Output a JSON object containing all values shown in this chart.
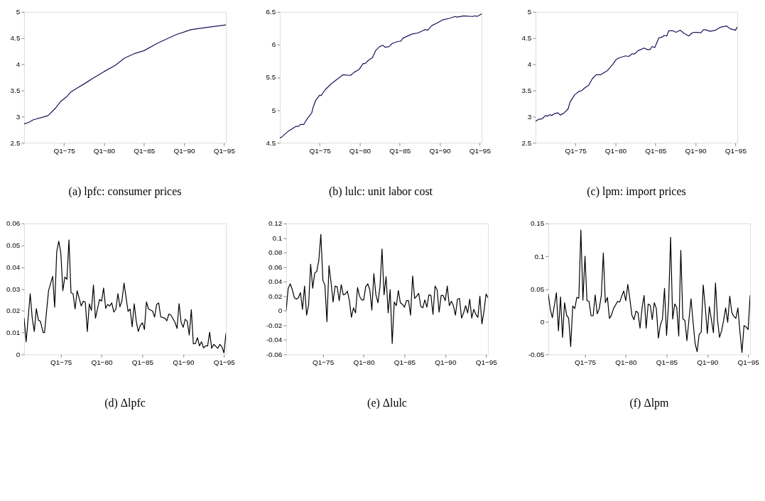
{
  "chart_data": [
    {
      "type": "line",
      "title": "(a) lpfc: consumer prices",
      "color": "#14145a",
      "grid": false,
      "xlim": [
        "1970-01",
        "1995-04"
      ],
      "ylim": [
        2.5,
        5
      ],
      "xticks": [
        {
          "value": "1975-01",
          "label": "Q1−75"
        },
        {
          "value": "1980-01",
          "label": "Q1−80"
        },
        {
          "value": "1985-01",
          "label": "Q1−85"
        },
        {
          "value": "1990-01",
          "label": "Q1−90"
        },
        {
          "value": "1995-01",
          "label": "Q1−95"
        }
      ],
      "yticks": [
        2.5,
        3,
        3.5,
        4,
        4.5,
        5
      ],
      "x": [
        "1970-01",
        "1970-08",
        "1971-03",
        "1972-05",
        "1973-01",
        "1973-12",
        "1974-08",
        "1975-05",
        "1975-11",
        "1976-08",
        "1977-09",
        "1978-08",
        "1980-01",
        "1981-06",
        "1982-08",
        "1983-12",
        "1985-01",
        "1986-09",
        "1988-12",
        "1990-11",
        "1992-09",
        "1995-04"
      ],
      "values": [
        2.86,
        2.89,
        2.94,
        2.99,
        3.02,
        3.16,
        3.29,
        3.38,
        3.47,
        3.54,
        3.64,
        3.73,
        3.86,
        3.98,
        4.12,
        4.21,
        4.26,
        4.4,
        4.56,
        4.66,
        4.7,
        4.75
      ]
    },
    {
      "type": "line",
      "title": "(b) lulc: unit labor cost",
      "color": "#14145a",
      "grid": false,
      "xlim": [
        "1970-01",
        "1995-04"
      ],
      "ylim": [
        4.5,
        6.5
      ],
      "xticks": [
        {
          "value": "1975-01",
          "label": "Q1−75"
        },
        {
          "value": "1980-01",
          "label": "Q1−80"
        },
        {
          "value": "1985-01",
          "label": "Q1−85"
        },
        {
          "value": "1990-01",
          "label": "Q1−90"
        },
        {
          "value": "1995-01",
          "label": "Q1−95"
        }
      ],
      "yticks": [
        4.5,
        5,
        5.5,
        6,
        6.5
      ],
      "x": [
        "1970-01",
        "1970-03",
        "1971-02",
        "1972-01",
        "1972-05",
        "1972-08",
        "1973-01",
        "1973-05",
        "1974-01",
        "1974-03",
        "1974-07",
        "1975-01",
        "1975-03",
        "1975-09",
        "1976-06",
        "1977-03",
        "1977-12",
        "1978-11",
        "1979-05",
        "1979-12",
        "1980-06",
        "1980-09",
        "1981-02",
        "1981-08",
        "1982-01",
        "1982-07",
        "1982-12",
        "1983-03",
        "1983-09",
        "1984-02",
        "1984-11",
        "1985-02",
        "1985-06",
        "1986-07",
        "1987-05",
        "1988-03",
        "1988-07",
        "1989-01",
        "1989-09",
        "1990-06",
        "1991-03",
        "1991-12",
        "1992-03",
        "1993-01",
        "1994-02",
        "1994-06",
        "1994-09",
        "1995-04"
      ],
      "values": [
        4.58,
        4.58,
        4.68,
        4.75,
        4.75,
        4.78,
        4.78,
        4.85,
        4.96,
        5.04,
        5.15,
        5.23,
        5.22,
        5.31,
        5.4,
        5.47,
        5.54,
        5.53,
        5.58,
        5.62,
        5.71,
        5.71,
        5.76,
        5.8,
        5.91,
        5.97,
        5.99,
        5.96,
        5.97,
        6.02,
        6.05,
        6.05,
        6.1,
        6.16,
        6.18,
        6.23,
        6.22,
        6.29,
        6.33,
        6.38,
        6.4,
        6.43,
        6.42,
        6.44,
        6.43,
        6.44,
        6.43,
        6.47
      ]
    },
    {
      "type": "line",
      "title": "(c) lpm: import prices",
      "color": "#14145a",
      "grid": false,
      "xlim": [
        "1970-01",
        "1995-04"
      ],
      "ylim": [
        2.5,
        5
      ],
      "xticks": [
        {
          "value": "1975-01",
          "label": "Q1−75"
        },
        {
          "value": "1980-01",
          "label": "Q1−80"
        },
        {
          "value": "1985-01",
          "label": "Q1−85"
        },
        {
          "value": "1990-01",
          "label": "Q1−90"
        },
        {
          "value": "1995-01",
          "label": "Q1−95"
        }
      ],
      "yticks": [
        2.5,
        3,
        3.5,
        4,
        4.5,
        5
      ],
      "x": [
        "1970-01",
        "1970-06",
        "1970-11",
        "1971-04",
        "1971-07",
        "1971-11",
        "1972-01",
        "1972-06",
        "1972-11",
        "1973-02",
        "1973-08",
        "1974-02",
        "1974-05",
        "1974-12",
        "1975-06",
        "1975-11",
        "1976-02",
        "1976-09",
        "1977-02",
        "1977-08",
        "1978-03",
        "1979-01",
        "1979-09",
        "1980-02",
        "1980-06",
        "1981-04",
        "1981-09",
        "1982-02",
        "1982-06",
        "1982-11",
        "1983-08",
        "1984-01",
        "1984-05",
        "1984-08",
        "1984-12",
        "1985-02",
        "1985-06",
        "1985-11",
        "1986-02",
        "1986-06",
        "1986-09",
        "1987-03",
        "1987-08",
        "1988-02",
        "1988-08",
        "1989-03",
        "1989-08",
        "1989-12",
        "1990-05",
        "1990-09",
        "1991-01",
        "1991-04",
        "1991-11",
        "1992-07",
        "1993-03",
        "1993-08",
        "1993-12",
        "1994-05",
        "1995-01",
        "1995-04"
      ],
      "values": [
        2.91,
        2.95,
        2.96,
        3.02,
        3.01,
        3.04,
        3.02,
        3.06,
        3.07,
        3.03,
        3.07,
        3.15,
        3.28,
        3.42,
        3.48,
        3.5,
        3.54,
        3.6,
        3.72,
        3.8,
        3.8,
        3.88,
        4.0,
        4.09,
        4.12,
        4.16,
        4.15,
        4.2,
        4.2,
        4.26,
        4.31,
        4.28,
        4.28,
        4.34,
        4.32,
        4.38,
        4.5,
        4.52,
        4.55,
        4.54,
        4.64,
        4.64,
        4.61,
        4.65,
        4.59,
        4.54,
        4.6,
        4.61,
        4.61,
        4.6,
        4.66,
        4.66,
        4.63,
        4.65,
        4.71,
        4.72,
        4.73,
        4.68,
        4.65,
        4.71
      ]
    },
    {
      "type": "line",
      "title": "(d) Δlpfc",
      "color": "#000000",
      "grid": false,
      "xlim": [
        "1970-07",
        "1995-04"
      ],
      "ylim": [
        0,
        0.06
      ],
      "xticks": [
        {
          "value": "1975-01",
          "label": "Q1−75"
        },
        {
          "value": "1980-01",
          "label": "Q1−80"
        },
        {
          "value": "1985-01",
          "label": "Q1−85"
        },
        {
          "value": "1990-01",
          "label": "Q1−90"
        },
        {
          "value": "1995-01",
          "label": "Q1−95"
        }
      ],
      "yticks": [
        0,
        0.01,
        0.02,
        0.03,
        0.04,
        0.05,
        0.06
      ],
      "x": [
        "1970-07",
        "1970-10",
        "1971-04",
        "1971-07",
        "1971-10",
        "1972-01",
        "1972-04",
        "1972-07",
        "1972-11",
        "1973-01",
        "1973-07",
        "1974-01",
        "1974-04",
        "1974-07",
        "1974-10",
        "1975-01",
        "1975-04",
        "1975-07",
        "1975-10",
        "1976-01",
        "1976-04",
        "1976-07",
        "1976-10",
        "1977-01",
        "1977-07",
        "1977-10",
        "1978-01",
        "1978-04",
        "1978-07",
        "1978-10",
        "1979-01",
        "1979-04",
        "1979-10",
        "1980-01",
        "1980-04",
        "1980-07",
        "1980-10",
        "1981-01",
        "1981-04",
        "1981-07",
        "1981-10",
        "1982-01",
        "1982-04",
        "1982-07",
        "1982-10",
        "1983-04",
        "1983-07",
        "1983-10",
        "1984-01",
        "1984-04",
        "1984-07",
        "1984-10",
        "1985-01",
        "1985-04",
        "1985-07",
        "1985-10",
        "1986-04",
        "1986-07",
        "1986-10",
        "1987-01",
        "1987-04",
        "1987-10",
        "1988-01",
        "1988-04",
        "1988-07",
        "1989-01",
        "1989-04",
        "1989-07",
        "1989-10",
        "1990-01",
        "1990-04",
        "1990-07",
        "1990-10",
        "1991-01",
        "1991-04",
        "1991-07",
        "1991-10",
        "1992-01",
        "1992-04",
        "1992-07",
        "1992-10",
        "1993-01",
        "1993-04",
        "1993-07",
        "1993-10",
        "1994-04",
        "1994-07",
        "1994-10",
        "1995-01",
        "1995-04"
      ],
      "values": [
        0.0166,
        0.0058,
        0.0278,
        0.0166,
        0.0105,
        0.021,
        0.0157,
        0.0152,
        0.01,
        0.01,
        0.0292,
        0.0358,
        0.0216,
        0.047,
        0.0519,
        0.0466,
        0.0292,
        0.0355,
        0.0344,
        0.0525,
        0.0283,
        0.0278,
        0.0208,
        0.0292,
        0.0222,
        0.0244,
        0.0239,
        0.0105,
        0.0232,
        0.0201,
        0.0318,
        0.0166,
        0.0252,
        0.0244,
        0.0304,
        0.0211,
        0.0229,
        0.0222,
        0.0236,
        0.0194,
        0.0208,
        0.0278,
        0.0218,
        0.0246,
        0.0327,
        0.0197,
        0.0208,
        0.0127,
        0.0232,
        0.0152,
        0.0105,
        0.0133,
        0.0145,
        0.0114,
        0.0241,
        0.0208,
        0.0199,
        0.0171,
        0.0229,
        0.0236,
        0.0172,
        0.0166,
        0.0154,
        0.0185,
        0.018,
        0.0147,
        0.0119,
        0.0233,
        0.0147,
        0.0124,
        0.0161,
        0.0152,
        0.0089,
        0.0205,
        0.0049,
        0.0049,
        0.0077,
        0.0039,
        0.0058,
        0.003,
        0.0039,
        0.0039,
        0.0102,
        0.0028,
        0.0046,
        0.0028,
        0.0046,
        0.0035,
        0.0007,
        0.0096
      ]
    },
    {
      "type": "line",
      "title": "(e) Δlulc",
      "color": "#000000",
      "grid": false,
      "xlim": [
        "1970-07",
        "1995-04"
      ],
      "ylim": [
        -0.06,
        0.12
      ],
      "xticks": [
        {
          "value": "1975-01",
          "label": "Q1−75"
        },
        {
          "value": "1980-01",
          "label": "Q1−80"
        },
        {
          "value": "1985-01",
          "label": "Q1−85"
        },
        {
          "value": "1990-01",
          "label": "Q1−90"
        },
        {
          "value": "1995-01",
          "label": "Q1−95"
        }
      ],
      "yticks": [
        -0.06,
        -0.04,
        -0.02,
        0,
        0.02,
        0.04,
        0.06,
        0.08,
        0.1,
        0.12
      ],
      "x": [
        "1970-07",
        "1970-10",
        "1971-01",
        "1971-04",
        "1971-07",
        "1971-10",
        "1972-01",
        "1972-04",
        "1972-07",
        "1972-10",
        "1973-01",
        "1973-04",
        "1973-07",
        "1973-10",
        "1974-01",
        "1974-04",
        "1974-07",
        "1974-10",
        "1975-01",
        "1975-04",
        "1975-07",
        "1975-10",
        "1976-01",
        "1976-04",
        "1976-07",
        "1976-10",
        "1977-01",
        "1977-04",
        "1977-07",
        "1977-10",
        "1978-01",
        "1978-04",
        "1978-07",
        "1978-10",
        "1979-01",
        "1979-04",
        "1979-07",
        "1979-10",
        "1980-01",
        "1980-04",
        "1980-07",
        "1980-10",
        "1981-01",
        "1981-04",
        "1981-07",
        "1981-10",
        "1982-01",
        "1982-04",
        "1982-07",
        "1982-10",
        "1983-01",
        "1983-04",
        "1983-07",
        "1983-10",
        "1984-01",
        "1984-04",
        "1984-07",
        "1984-10",
        "1985-01",
        "1985-04",
        "1985-07",
        "1985-10",
        "1986-01",
        "1986-04",
        "1986-07",
        "1986-10",
        "1987-01",
        "1987-04",
        "1987-07",
        "1987-10",
        "1988-01",
        "1988-04",
        "1988-07",
        "1988-10",
        "1989-01",
        "1989-04",
        "1989-07",
        "1989-10",
        "1990-01",
        "1990-04",
        "1990-07",
        "1990-10",
        "1991-01",
        "1991-04",
        "1991-07",
        "1991-10",
        "1992-01",
        "1992-04",
        "1992-07",
        "1992-10",
        "1993-01",
        "1993-04",
        "1993-07",
        "1993-10",
        "1994-01",
        "1994-04",
        "1994-07",
        "1994-10",
        "1995-01",
        "1995-04"
      ],
      "values": [
        0.001,
        0.031,
        0.037,
        0.029,
        0.018,
        0.016,
        0.018,
        0.025,
        0.002,
        0.034,
        -0.006,
        0.008,
        0.064,
        0.031,
        0.052,
        0.054,
        0.069,
        0.105,
        0.042,
        0.035,
        -0.015,
        0.062,
        0.039,
        0.012,
        0.034,
        0.033,
        0.014,
        0.036,
        0.022,
        0.023,
        0.027,
        0.014,
        -0.009,
        0.004,
        -0.003,
        0.032,
        0.02,
        0.015,
        0.015,
        0.033,
        0.037,
        0.029,
        0.001,
        0.051,
        0.022,
        0.011,
        0.034,
        0.085,
        0.022,
        0.047,
        -0.003,
        0.029,
        -0.045,
        0.012,
        0.007,
        0.028,
        0.011,
        0.009,
        0.005,
        0.014,
        0.014,
        -0.006,
        0.048,
        0.017,
        0.02,
        0.024,
        0.006,
        0.004,
        0.015,
        0.005,
        0.022,
        0.021,
        -0.005,
        0.034,
        0.029,
        -0.002,
        0.021,
        0.021,
        0.014,
        0.034,
        0.007,
        0.013,
        0.007,
        -0.006,
        0.016,
        0.017,
        -0.01,
        -0.003,
        0.007,
        -0.003,
        0.016,
        -0.01,
        0.002,
        -0.005,
        -0.009,
        0.02,
        -0.018,
        -0.001,
        0.023,
        0.018
      ]
    },
    {
      "type": "line",
      "title": "(f) Δlpm",
      "color": "#000000",
      "grid": false,
      "xlim": [
        "1970-07",
        "1995-04"
      ],
      "ylim": [
        -0.05,
        0.15
      ],
      "xticks": [
        {
          "value": "1975-01",
          "label": "Q1−75"
        },
        {
          "value": "1980-01",
          "label": "Q1−80"
        },
        {
          "value": "1985-01",
          "label": "Q1−85"
        },
        {
          "value": "1990-01",
          "label": "Q1−90"
        },
        {
          "value": "1995-01",
          "label": "Q1−95"
        }
      ],
      "yticks": [
        -0.05,
        0,
        0.05,
        0.1,
        0.15
      ],
      "x": [
        "1970-07",
        "1970-10",
        "1971-01",
        "1971-07",
        "1971-10",
        "1972-01",
        "1972-04",
        "1972-07",
        "1972-10",
        "1973-01",
        "1973-04",
        "1973-07",
        "1973-10",
        "1974-01",
        "1974-04",
        "1974-07",
        "1974-10",
        "1975-01",
        "1975-04",
        "1975-07",
        "1975-10",
        "1976-01",
        "1976-04",
        "1976-07",
        "1976-10",
        "1977-01",
        "1977-04",
        "1977-07",
        "1977-10",
        "1978-01",
        "1978-04",
        "1978-07",
        "1979-01",
        "1979-04",
        "1979-10",
        "1980-01",
        "1980-04",
        "1980-07",
        "1980-10",
        "1981-01",
        "1981-04",
        "1981-07",
        "1981-10",
        "1982-01",
        "1982-04",
        "1982-07",
        "1982-10",
        "1983-01",
        "1983-04",
        "1983-07",
        "1983-10",
        "1984-01",
        "1984-04",
        "1984-07",
        "1984-10",
        "1985-01",
        "1985-04",
        "1985-07",
        "1985-10",
        "1986-01",
        "1986-04",
        "1986-07",
        "1986-10",
        "1987-01",
        "1987-04",
        "1987-07",
        "1988-01",
        "1988-04",
        "1988-07",
        "1988-10",
        "1989-01",
        "1989-04",
        "1989-07",
        "1989-10",
        "1990-01",
        "1990-04",
        "1990-07",
        "1990-10",
        "1991-01",
        "1991-04",
        "1991-07",
        "1991-10",
        "1992-01",
        "1992-04",
        "1992-07",
        "1992-10",
        "1993-01",
        "1993-04",
        "1993-07",
        "1993-10",
        "1994-01",
        "1994-04",
        "1994-07",
        "1994-10",
        "1995-01",
        "1995-04"
      ],
      "values": [
        0.042,
        0.019,
        0.006,
        0.044,
        -0.014,
        0.038,
        -0.024,
        0.029,
        0.01,
        0.005,
        -0.038,
        0.024,
        0.02,
        0.037,
        0.036,
        0.14,
        0.033,
        0.1,
        0.032,
        0.031,
        0.009,
        0.009,
        0.041,
        0.012,
        0.02,
        0.04,
        0.105,
        0.029,
        0.037,
        0.005,
        0.01,
        0.02,
        0.031,
        0.03,
        0.047,
        0.032,
        0.057,
        0.035,
        0.01,
        0.003,
        0.016,
        0.014,
        -0.01,
        0.021,
        0.04,
        -0.01,
        0.027,
        0.025,
        0.003,
        0.029,
        0.02,
        -0.025,
        -0.005,
        0.004,
        0.051,
        -0.021,
        0.027,
        0.129,
        0.004,
        0.027,
        0.022,
        -0.022,
        0.109,
        0.004,
        0.002,
        -0.029,
        0.035,
        0.0,
        -0.033,
        -0.046,
        -0.019,
        -0.016,
        0.056,
        0.022,
        -0.018,
        0.023,
        0.003,
        -0.017,
        0.059,
        0.003,
        -0.024,
        -0.014,
        0.002,
        0.021,
        -0.001,
        0.039,
        0.014,
        0.008,
        0.005,
        0.021,
        -0.016,
        -0.047,
        -0.006,
        -0.008,
        -0.012,
        0.04
      ]
    }
  ]
}
